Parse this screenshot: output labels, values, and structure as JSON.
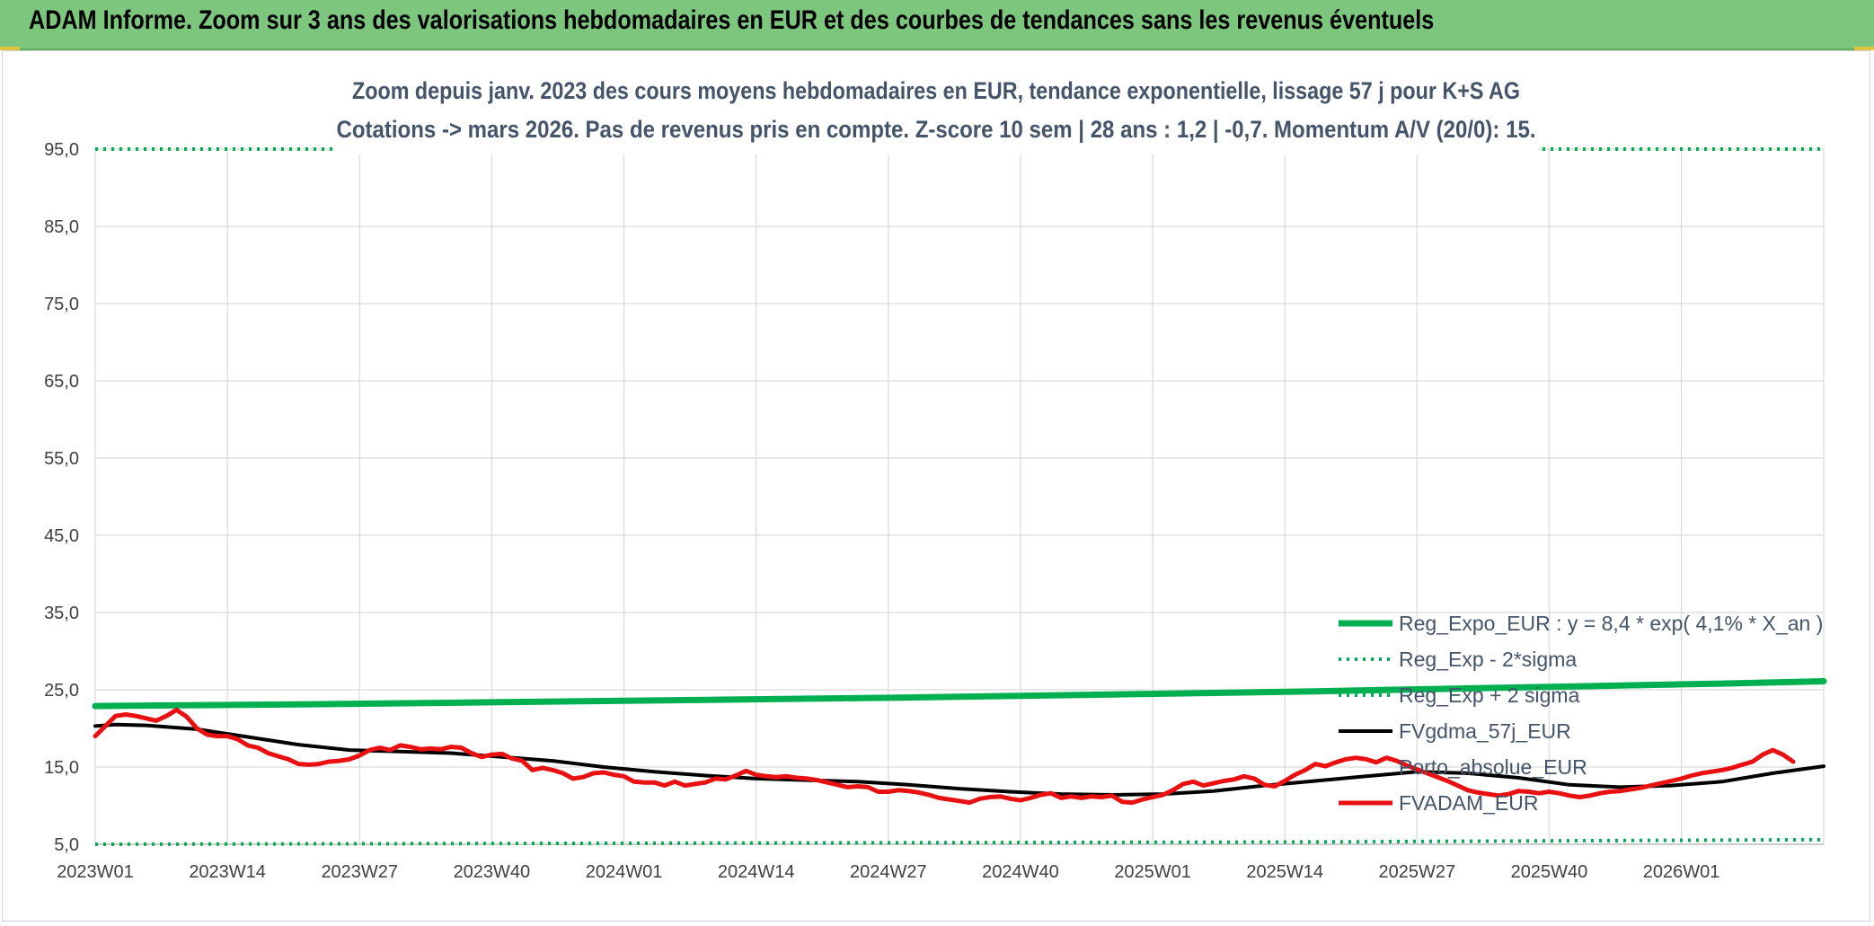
{
  "banner": {
    "title": "ADAM Informe. Zoom sur 3 ans des valorisations hebdomadaires en EUR et des courbes de tendances sans les revenus éventuels"
  },
  "colors": {
    "banner": "#7dc67e",
    "reg_expo": "#00b050",
    "sigma": "#00b050",
    "fvgdma": "#000000",
    "fvadam": "#e81010",
    "grid": "#d9d9d9"
  },
  "chart_data": {
    "type": "line",
    "title": "Zoom depuis janv. 2023 des cours moyens hebdomadaires en EUR, tendance exponentielle, lissage 57 j pour K+S AG",
    "subtitle": "Cotations -> mars 2026. Pas de revenus pris en compte. Z-score 10 sem | 28 ans : 1,2 | -0,7. Momentum A/V (20/0): 15.",
    "x_ticks": [
      "2023W01",
      "2023W14",
      "2023W27",
      "2023W40",
      "2024W01",
      "2024W14",
      "2024W27",
      "2024W40",
      "2025W01",
      "2025W14",
      "2025W27",
      "2025W40",
      "2026W01"
    ],
    "x_range": [
      0,
      170
    ],
    "y_ticks": [
      "5,0",
      "15,0",
      "25,0",
      "35,0",
      "45,0",
      "55,0",
      "65,0",
      "75,0",
      "85,0",
      "95,0"
    ],
    "ylim": [
      5,
      95
    ],
    "grid": true,
    "legend_position": "bottom-right",
    "series": [
      {
        "name": "Reg_Expo_EUR : y = 8,4 * exp( 4,1% *  X_an )",
        "style": "solid-thick",
        "points": [
          [
            0,
            22.9
          ],
          [
            20,
            23.1
          ],
          [
            40,
            23.4
          ],
          [
            60,
            23.7
          ],
          [
            80,
            24.0
          ],
          [
            100,
            24.4
          ],
          [
            120,
            24.8
          ],
          [
            140,
            25.3
          ],
          [
            160,
            25.8
          ],
          [
            170,
            26.1
          ]
        ]
      },
      {
        "name": "Reg_Exp - 2*sigma",
        "style": "dotted",
        "points": [
          [
            0,
            5.0
          ],
          [
            40,
            5.1
          ],
          [
            80,
            5.2
          ],
          [
            120,
            5.3
          ],
          [
            170,
            5.6
          ]
        ]
      },
      {
        "name": "Reg_Exp + 2 sigma",
        "style": "dotted",
        "points": [
          [
            0,
            95.0
          ],
          [
            170,
            95.0
          ]
        ]
      },
      {
        "name": "FVgdma_57j_EUR",
        "style": "solid",
        "points": [
          [
            0,
            20.3
          ],
          [
            2,
            20.5
          ],
          [
            5,
            20.4
          ],
          [
            10,
            19.9
          ],
          [
            15,
            18.9
          ],
          [
            20,
            17.9
          ],
          [
            25,
            17.2
          ],
          [
            30,
            17.0
          ],
          [
            35,
            16.8
          ],
          [
            40,
            16.3
          ],
          [
            45,
            15.8
          ],
          [
            50,
            15.0
          ],
          [
            55,
            14.4
          ],
          [
            60,
            13.9
          ],
          [
            65,
            13.5
          ],
          [
            70,
            13.3
          ],
          [
            75,
            13.1
          ],
          [
            80,
            12.7
          ],
          [
            85,
            12.2
          ],
          [
            90,
            11.8
          ],
          [
            95,
            11.5
          ],
          [
            100,
            11.4
          ],
          [
            105,
            11.5
          ],
          [
            110,
            11.9
          ],
          [
            115,
            12.6
          ],
          [
            120,
            13.2
          ],
          [
            125,
            13.8
          ],
          [
            130,
            14.4
          ],
          [
            135,
            14.2
          ],
          [
            140,
            13.6
          ],
          [
            145,
            12.7
          ],
          [
            150,
            12.4
          ],
          [
            155,
            12.6
          ],
          [
            160,
            13.1
          ],
          [
            165,
            14.2
          ],
          [
            170,
            15.1
          ]
        ]
      },
      {
        "name": "Porto_absolue_EUR",
        "style": "none",
        "points": []
      },
      {
        "name": "FVADAM_EUR",
        "style": "solid",
        "points": [
          [
            0,
            19.0
          ],
          [
            1,
            20.3
          ],
          [
            2,
            21.6
          ],
          [
            3,
            21.8
          ],
          [
            4,
            21.6
          ],
          [
            5,
            21.3
          ],
          [
            6,
            21.0
          ],
          [
            7,
            21.6
          ],
          [
            8,
            22.4
          ],
          [
            9,
            21.5
          ],
          [
            10,
            20.0
          ],
          [
            11,
            19.2
          ],
          [
            12,
            19.0
          ],
          [
            13,
            19.0
          ],
          [
            14,
            18.6
          ],
          [
            15,
            17.8
          ],
          [
            16,
            17.5
          ],
          [
            17,
            16.8
          ],
          [
            18,
            16.4
          ],
          [
            19,
            16.0
          ],
          [
            20,
            15.4
          ],
          [
            21,
            15.3
          ],
          [
            22,
            15.4
          ],
          [
            23,
            15.7
          ],
          [
            24,
            15.8
          ],
          [
            25,
            16.0
          ],
          [
            26,
            16.5
          ],
          [
            27,
            17.2
          ],
          [
            28,
            17.5
          ],
          [
            29,
            17.2
          ],
          [
            30,
            17.8
          ],
          [
            31,
            17.6
          ],
          [
            32,
            17.3
          ],
          [
            33,
            17.4
          ],
          [
            34,
            17.3
          ],
          [
            35,
            17.6
          ],
          [
            36,
            17.5
          ],
          [
            37,
            16.8
          ],
          [
            38,
            16.3
          ],
          [
            39,
            16.6
          ],
          [
            40,
            16.7
          ],
          [
            41,
            16.1
          ],
          [
            42,
            15.8
          ],
          [
            43,
            14.6
          ],
          [
            44,
            14.9
          ],
          [
            45,
            14.6
          ],
          [
            46,
            14.2
          ],
          [
            47,
            13.5
          ],
          [
            48,
            13.7
          ],
          [
            49,
            14.2
          ],
          [
            50,
            14.3
          ],
          [
            51,
            14.0
          ],
          [
            52,
            13.8
          ],
          [
            53,
            13.1
          ],
          [
            54,
            13.0
          ],
          [
            55,
            13.0
          ],
          [
            56,
            12.6
          ],
          [
            57,
            13.1
          ],
          [
            58,
            12.6
          ],
          [
            59,
            12.8
          ],
          [
            60,
            13.0
          ],
          [
            61,
            13.5
          ],
          [
            62,
            13.4
          ],
          [
            63,
            13.9
          ],
          [
            64,
            14.5
          ],
          [
            65,
            14.0
          ],
          [
            66,
            13.8
          ],
          [
            67,
            13.7
          ],
          [
            68,
            13.8
          ],
          [
            69,
            13.6
          ],
          [
            70,
            13.5
          ],
          [
            71,
            13.3
          ],
          [
            72,
            13.0
          ],
          [
            73,
            12.7
          ],
          [
            74,
            12.4
          ],
          [
            75,
            12.5
          ],
          [
            76,
            12.4
          ],
          [
            77,
            11.8
          ],
          [
            78,
            11.8
          ],
          [
            79,
            12.0
          ],
          [
            80,
            11.9
          ],
          [
            81,
            11.7
          ],
          [
            82,
            11.4
          ],
          [
            83,
            11.0
          ],
          [
            84,
            10.8
          ],
          [
            85,
            10.6
          ],
          [
            86,
            10.4
          ],
          [
            87,
            10.9
          ],
          [
            88,
            11.1
          ],
          [
            89,
            11.2
          ],
          [
            90,
            10.9
          ],
          [
            91,
            10.7
          ],
          [
            92,
            11.0
          ],
          [
            93,
            11.4
          ],
          [
            94,
            11.6
          ],
          [
            95,
            11.0
          ],
          [
            96,
            11.2
          ],
          [
            97,
            11.0
          ],
          [
            98,
            11.2
          ],
          [
            99,
            11.1
          ],
          [
            100,
            11.3
          ],
          [
            101,
            10.5
          ],
          [
            102,
            10.4
          ],
          [
            103,
            10.8
          ],
          [
            104,
            11.1
          ],
          [
            105,
            11.4
          ],
          [
            106,
            12.0
          ],
          [
            107,
            12.8
          ],
          [
            108,
            13.1
          ],
          [
            109,
            12.6
          ],
          [
            110,
            12.9
          ],
          [
            111,
            13.2
          ],
          [
            112,
            13.4
          ],
          [
            113,
            13.8
          ],
          [
            114,
            13.5
          ],
          [
            115,
            12.7
          ],
          [
            116,
            12.5
          ],
          [
            117,
            13.2
          ],
          [
            118,
            14.0
          ],
          [
            119,
            14.6
          ],
          [
            120,
            15.4
          ],
          [
            121,
            15.1
          ],
          [
            122,
            15.6
          ],
          [
            123,
            16.0
          ],
          [
            124,
            16.2
          ],
          [
            125,
            16.0
          ],
          [
            126,
            15.6
          ],
          [
            127,
            16.2
          ],
          [
            128,
            15.8
          ],
          [
            129,
            15.2
          ],
          [
            130,
            14.7
          ],
          [
            131,
            14.2
          ],
          [
            132,
            13.7
          ],
          [
            133,
            13.2
          ],
          [
            134,
            12.6
          ],
          [
            135,
            12.0
          ],
          [
            136,
            11.7
          ],
          [
            137,
            11.5
          ],
          [
            138,
            11.3
          ],
          [
            139,
            11.5
          ],
          [
            140,
            11.9
          ],
          [
            141,
            11.8
          ],
          [
            142,
            11.6
          ],
          [
            143,
            11.8
          ],
          [
            144,
            11.6
          ],
          [
            145,
            11.3
          ],
          [
            146,
            11.1
          ],
          [
            147,
            11.3
          ],
          [
            148,
            11.6
          ],
          [
            149,
            11.8
          ],
          [
            150,
            11.9
          ],
          [
            151,
            12.1
          ],
          [
            152,
            12.3
          ],
          [
            153,
            12.6
          ],
          [
            154,
            12.9
          ],
          [
            155,
            13.2
          ],
          [
            156,
            13.5
          ],
          [
            157,
            13.9
          ],
          [
            158,
            14.2
          ],
          [
            159,
            14.4
          ],
          [
            160,
            14.6
          ],
          [
            161,
            14.9
          ],
          [
            162,
            15.3
          ],
          [
            163,
            15.7
          ],
          [
            164,
            16.6
          ],
          [
            165,
            17.2
          ],
          [
            166,
            16.6
          ],
          [
            167,
            15.7
          ]
        ]
      }
    ]
  }
}
